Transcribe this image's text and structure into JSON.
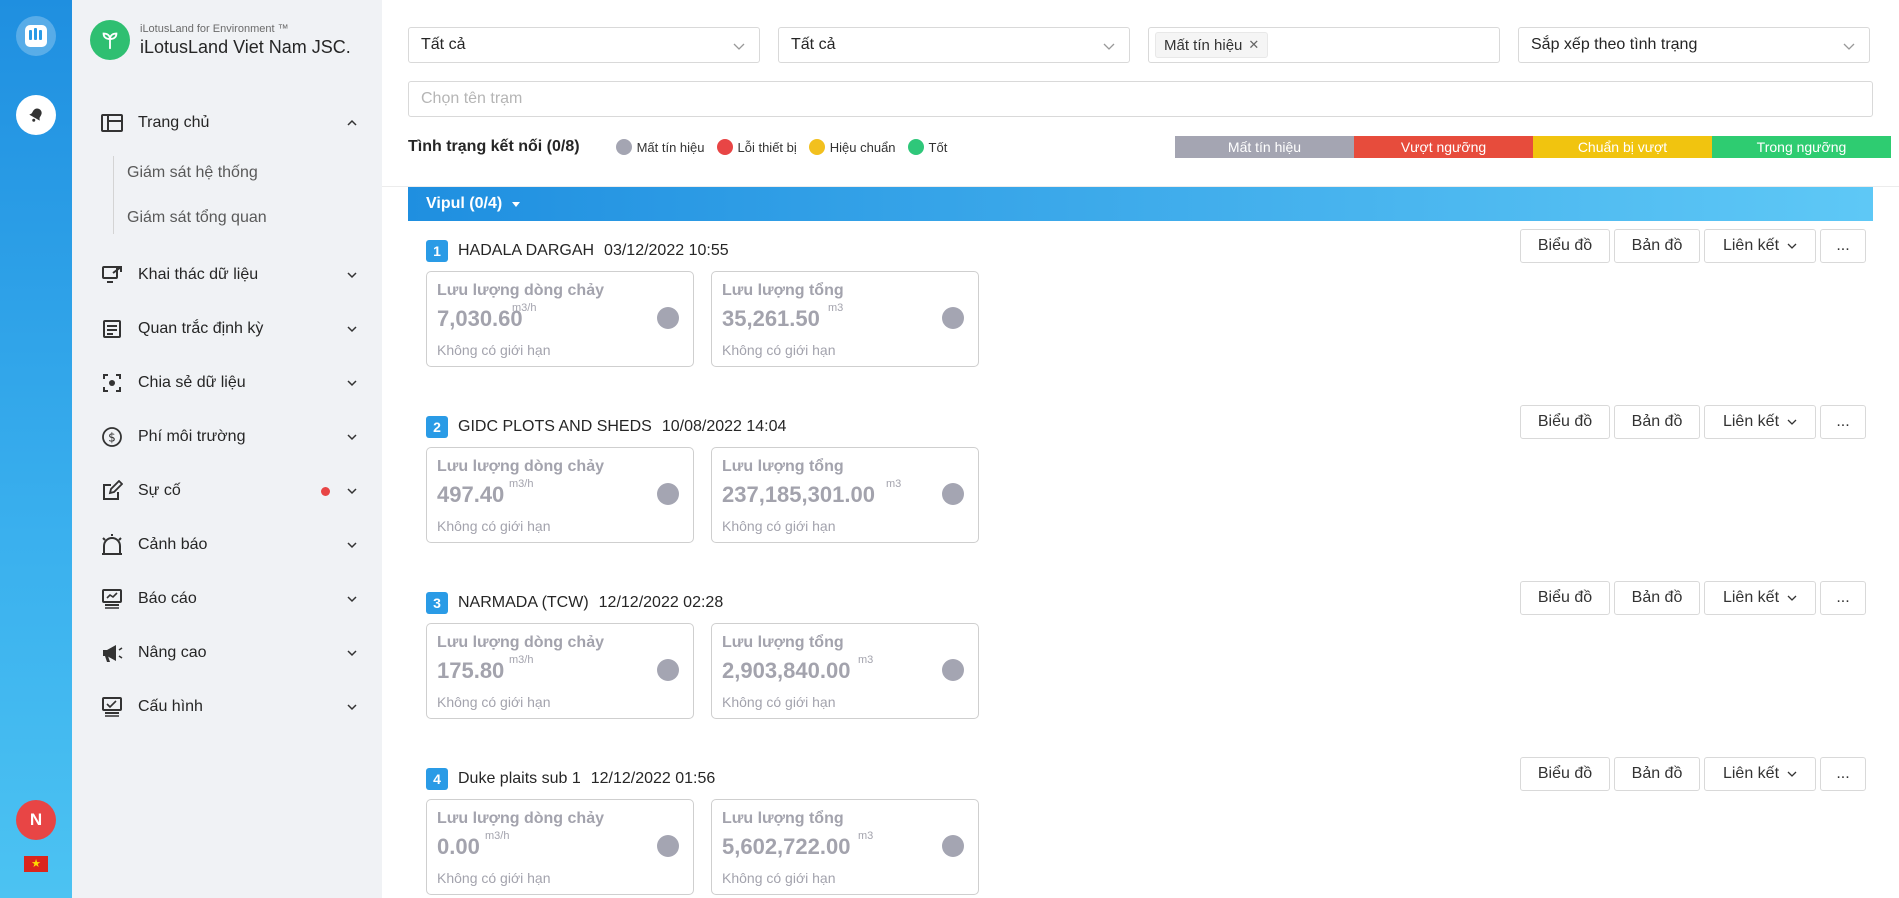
{
  "brand": {
    "subtitle": "iLotusLand for Environment ™",
    "name": "iLotusLand Viet Nam JSC."
  },
  "rail": {
    "avatar_initial": "N"
  },
  "nav": {
    "home": {
      "label": "Trang chủ",
      "sub": [
        "Giám sát hệ thống",
        "Giám sát tổng quan"
      ]
    },
    "items": [
      {
        "label": "Khai thác dữ liệu",
        "icon": "data-export-icon"
      },
      {
        "label": "Quan trắc định kỳ",
        "icon": "periodic-monitor-icon"
      },
      {
        "label": "Chia sẻ dữ liệu",
        "icon": "share-data-icon"
      },
      {
        "label": "Phí môi trường",
        "icon": "dollar-icon"
      },
      {
        "label": "Sự cố",
        "icon": "edit-icon"
      },
      {
        "label": "Cảnh báo",
        "icon": "alarm-icon"
      },
      {
        "label": "Báo cáo",
        "icon": "report-icon"
      },
      {
        "label": "Nâng cao",
        "icon": "megaphone-icon"
      },
      {
        "label": "Cấu hình",
        "icon": "config-icon"
      }
    ]
  },
  "filters": {
    "select1": "Tất cả",
    "select2": "Tất cả",
    "status_tag": "Mất tín hiệu",
    "sort": "Sắp xếp theo tình trạng",
    "search_placeholder": "Chọn tên trạm"
  },
  "status": {
    "title": "Tình trạng kết nối (0/8)",
    "legend": [
      {
        "label": "Mất tín hiệu",
        "color": "#a4a5b2"
      },
      {
        "label": "Lỗi thiết bị",
        "color": "#e84545"
      },
      {
        "label": "Hiệu chuẩn",
        "color": "#f2c01e"
      },
      {
        "label": "Tốt",
        "color": "#2fc77a"
      }
    ],
    "bar": [
      {
        "label": "Mất tín hiệu",
        "color": "#a4a5b2"
      },
      {
        "label": "Vượt ngưỡng",
        "color": "#e74c3c"
      },
      {
        "label": "Chuẩn bị vượt",
        "color": "#f1c40f"
      },
      {
        "label": "Trong ngưỡng",
        "color": "#2ecc71"
      }
    ]
  },
  "group": {
    "label": "Vipul (0/4)"
  },
  "actions": {
    "chart": "Biểu đồ",
    "map": "Bản đồ",
    "link": "Liên kết",
    "more": "..."
  },
  "stations": [
    {
      "num": "1",
      "name": "HADALA DARGAH",
      "time": "03/12/2022 10:55",
      "cards": [
        {
          "label": "Lưu lượng dòng chảy",
          "value": "7,030.60",
          "unit": "m3/h",
          "limit": "Không có giới hạn"
        },
        {
          "label": "Lưu lượng tổng",
          "value": "35,261.50",
          "unit": "m3",
          "limit": "Không có giới hạn"
        }
      ]
    },
    {
      "num": "2",
      "name": "GIDC PLOTS AND SHEDS",
      "time": "10/08/2022 14:04",
      "cards": [
        {
          "label": "Lưu lượng dòng chảy",
          "value": "497.40",
          "unit": "m3/h",
          "limit": "Không có giới hạn"
        },
        {
          "label": "Lưu lượng tổng",
          "value": "237,185,301.00",
          "unit": "m3",
          "limit": "Không có giới hạn"
        }
      ]
    },
    {
      "num": "3",
      "name": "NARMADA (TCW)",
      "time": "12/12/2022 02:28",
      "cards": [
        {
          "label": "Lưu lượng dòng chảy",
          "value": "175.80",
          "unit": "m3/h",
          "limit": "Không có giới hạn"
        },
        {
          "label": "Lưu lượng tổng",
          "value": "2,903,840.00",
          "unit": "m3",
          "limit": "Không có giới hạn"
        }
      ]
    },
    {
      "num": "4",
      "name": "Duke plaits sub 1",
      "time": "12/12/2022 01:56",
      "cards": [
        {
          "label": "Lưu lượng dòng chảy",
          "value": "0.00",
          "unit": "m3/h",
          "limit": "Không có giới hạn"
        },
        {
          "label": "Lưu lượng tổng",
          "value": "5,602,722.00",
          "unit": "m3",
          "limit": "Không có giới hạn"
        }
      ]
    }
  ]
}
